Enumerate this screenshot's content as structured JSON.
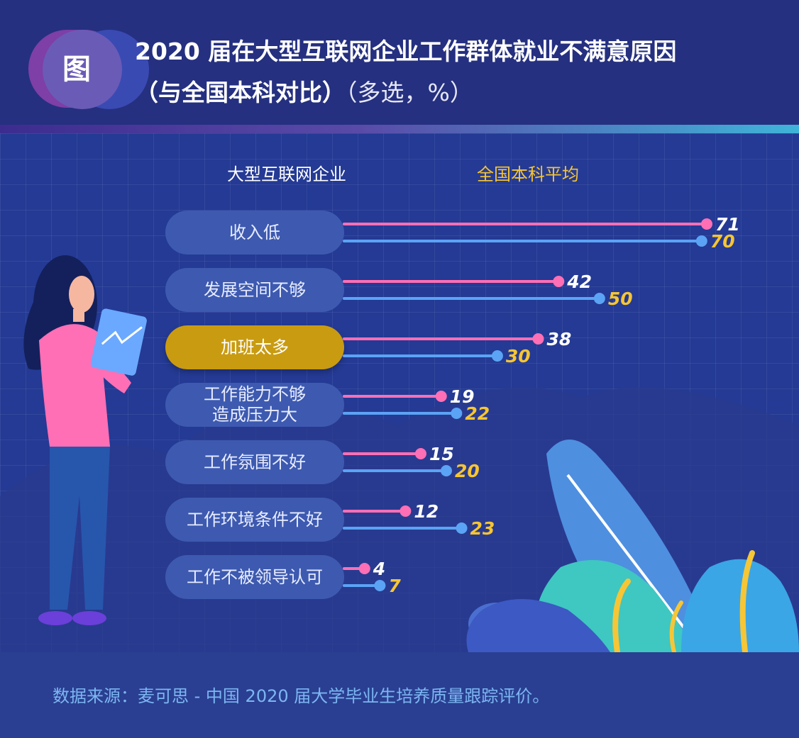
{
  "header": {
    "badge": "图",
    "title_line1": "2020 届在大型互联网企业工作群体就业不满意原因",
    "title_line2_strong": "（与全国本科对比）",
    "title_line2_light": "（多选，%）"
  },
  "legend": [
    {
      "name": "大型互联网企业",
      "color": "#ff6fb5",
      "text_color": "#ffffff"
    },
    {
      "name": "全国本科平均",
      "color": "#5ba3f5",
      "text_color": "#f7c531"
    }
  ],
  "chart_data": {
    "type": "bar",
    "title": "2020 届在大型互联网企业工作群体就业不满意原因（与全国本科对比）（多选，%）",
    "xlabel": "",
    "ylabel": "",
    "categories": [
      "收入低",
      "发展空间不够",
      "加班太多",
      "工作能力不够\n造成压力大",
      "工作氛围不好",
      "工作环境条件不好",
      "工作不被领导认可"
    ],
    "highlight_category": "加班太多",
    "series": [
      {
        "name": "大型互联网企业",
        "values": [
          71,
          42,
          38,
          19,
          15,
          12,
          4
        ],
        "color": "#ff6fb5",
        "label_color": "#ffffff"
      },
      {
        "name": "全国本科平均",
        "values": [
          70,
          50,
          30,
          22,
          20,
          23,
          7
        ],
        "color": "#5ba3f5",
        "label_color": "#f7c531"
      }
    ],
    "xlim": [
      0,
      71
    ],
    "orientation": "horizontal"
  },
  "footer": {
    "source": "数据来源：麦可思 - 中国 2020 届大学毕业生培养质量跟踪评价。"
  }
}
